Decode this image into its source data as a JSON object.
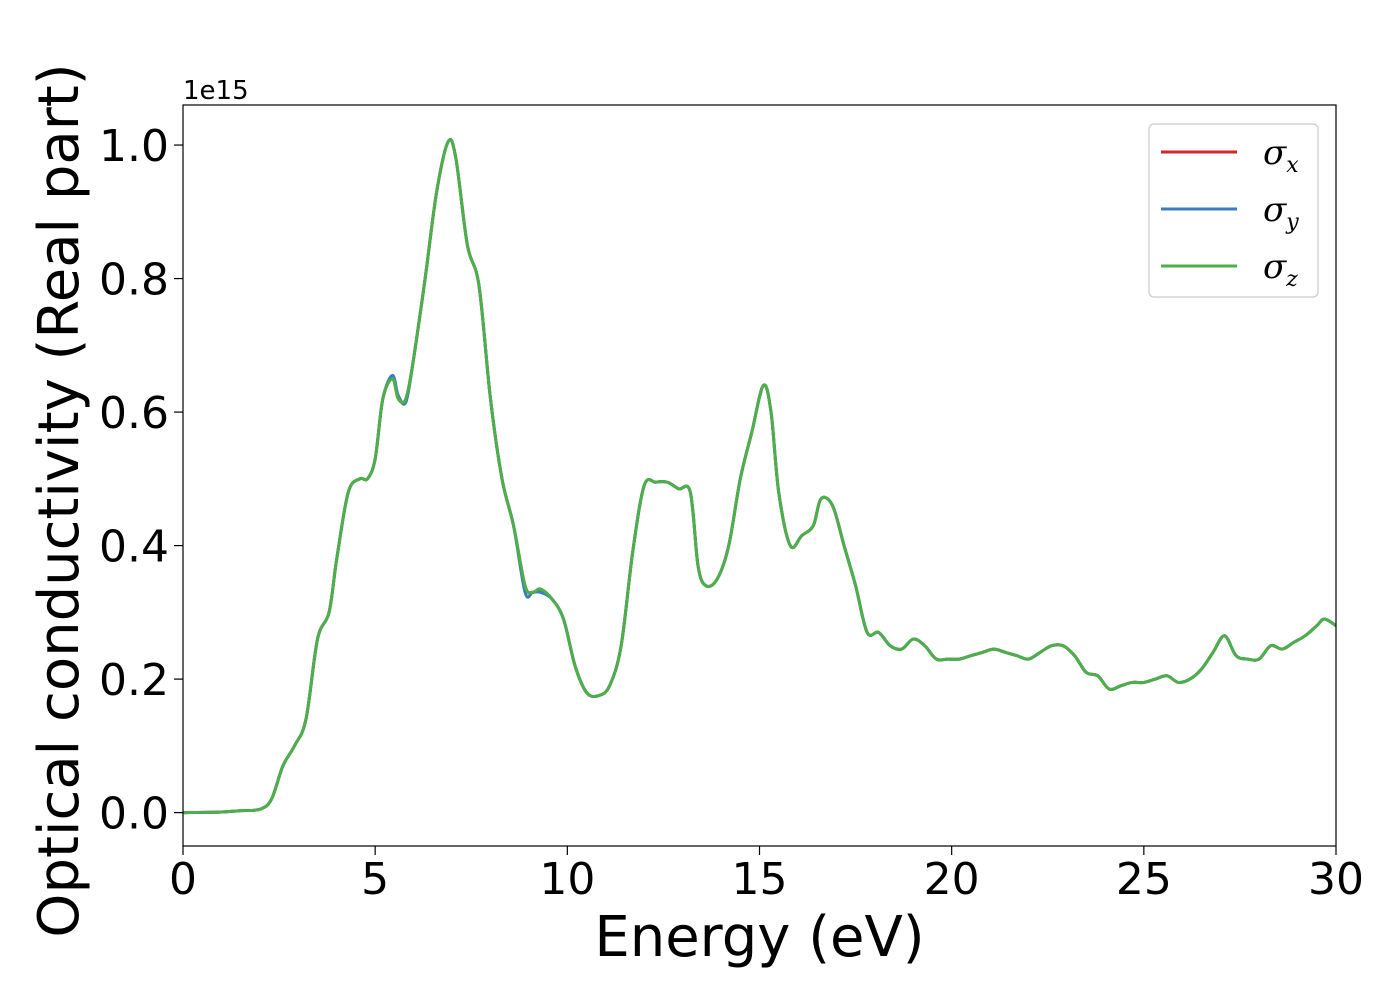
{
  "chart_data": {
    "type": "line",
    "xlabel": "Energy (eV)",
    "ylabel": "Optical conductivity (Real part)",
    "y_offset_label": "1e15",
    "xlim": [
      0,
      30
    ],
    "ylim": [
      -0.05,
      1.06
    ],
    "x_ticks": [
      0,
      5,
      10,
      15,
      20,
      25,
      30
    ],
    "x_tick_labels": [
      "0",
      "5",
      "10",
      "15",
      "20",
      "25",
      "30"
    ],
    "y_ticks": [
      0.0,
      0.2,
      0.4,
      0.6,
      0.8,
      1.0
    ],
    "y_tick_labels": [
      "0.0",
      "0.2",
      "0.4",
      "0.6",
      "0.8",
      "1.0"
    ],
    "grid": false,
    "legend_position": "top-right",
    "x": [
      0,
      1,
      1.5,
      2,
      2.3,
      2.6,
      2.9,
      3.2,
      3.5,
      3.8,
      4.0,
      4.3,
      4.6,
      4.8,
      5.0,
      5.2,
      5.45,
      5.6,
      5.8,
      6.0,
      6.3,
      6.6,
      6.9,
      7.1,
      7.4,
      7.7,
      8.0,
      8.3,
      8.6,
      8.9,
      9.1,
      9.3,
      9.6,
      9.9,
      10.2,
      10.5,
      10.8,
      11.1,
      11.4,
      11.7,
      12.0,
      12.3,
      12.6,
      12.9,
      13.2,
      13.4,
      13.6,
      13.9,
      14.2,
      14.5,
      14.8,
      15.1,
      15.3,
      15.5,
      15.8,
      16.1,
      16.4,
      16.6,
      16.9,
      17.2,
      17.5,
      17.8,
      18.1,
      18.4,
      18.7,
      19.0,
      19.3,
      19.6,
      19.9,
      20.2,
      20.5,
      20.8,
      21.1,
      21.4,
      21.7,
      22.0,
      22.3,
      22.6,
      22.9,
      23.2,
      23.5,
      23.8,
      24.1,
      24.4,
      24.7,
      25.0,
      25.3,
      25.6,
      25.9,
      26.2,
      26.5,
      26.8,
      27.1,
      27.4,
      27.7,
      28.0,
      28.3,
      28.6,
      28.9,
      29.2,
      29.5,
      29.7,
      30.0
    ],
    "series": [
      {
        "name": "σx",
        "label_base": "σ",
        "label_sub": "x",
        "color": "#d62728",
        "values": [
          0.0,
          0.001,
          0.003,
          0.005,
          0.02,
          0.07,
          0.1,
          0.14,
          0.26,
          0.3,
          0.38,
          0.48,
          0.5,
          0.5,
          0.53,
          0.62,
          0.65,
          0.62,
          0.62,
          0.68,
          0.8,
          0.93,
          1.005,
          0.98,
          0.85,
          0.79,
          0.62,
          0.5,
          0.43,
          0.34,
          0.33,
          0.335,
          0.32,
          0.29,
          0.22,
          0.18,
          0.175,
          0.19,
          0.25,
          0.39,
          0.49,
          0.495,
          0.495,
          0.485,
          0.48,
          0.37,
          0.34,
          0.35,
          0.4,
          0.5,
          0.57,
          0.64,
          0.6,
          0.48,
          0.4,
          0.415,
          0.43,
          0.47,
          0.46,
          0.4,
          0.34,
          0.27,
          0.27,
          0.25,
          0.245,
          0.26,
          0.25,
          0.23,
          0.23,
          0.23,
          0.235,
          0.24,
          0.245,
          0.24,
          0.235,
          0.23,
          0.24,
          0.25,
          0.25,
          0.235,
          0.21,
          0.205,
          0.185,
          0.19,
          0.195,
          0.195,
          0.2,
          0.205,
          0.195,
          0.2,
          0.215,
          0.24,
          0.265,
          0.235,
          0.23,
          0.23,
          0.25,
          0.245,
          0.255,
          0.265,
          0.28,
          0.29,
          0.28
        ]
      },
      {
        "name": "σy",
        "label_base": "σ",
        "label_sub": "y",
        "color": "#3a7ebf",
        "values": [
          0.0,
          0.001,
          0.003,
          0.005,
          0.02,
          0.07,
          0.1,
          0.14,
          0.26,
          0.3,
          0.38,
          0.48,
          0.5,
          0.5,
          0.53,
          0.62,
          0.655,
          0.625,
          0.615,
          0.68,
          0.8,
          0.93,
          1.005,
          0.98,
          0.85,
          0.79,
          0.62,
          0.5,
          0.43,
          0.33,
          0.33,
          0.33,
          0.32,
          0.29,
          0.22,
          0.18,
          0.175,
          0.19,
          0.25,
          0.39,
          0.49,
          0.495,
          0.495,
          0.485,
          0.48,
          0.37,
          0.34,
          0.35,
          0.4,
          0.5,
          0.57,
          0.64,
          0.6,
          0.48,
          0.4,
          0.415,
          0.43,
          0.47,
          0.46,
          0.4,
          0.34,
          0.27,
          0.27,
          0.25,
          0.245,
          0.26,
          0.25,
          0.23,
          0.23,
          0.23,
          0.235,
          0.24,
          0.245,
          0.24,
          0.235,
          0.23,
          0.24,
          0.25,
          0.25,
          0.235,
          0.21,
          0.205,
          0.185,
          0.19,
          0.195,
          0.195,
          0.2,
          0.205,
          0.195,
          0.2,
          0.215,
          0.24,
          0.265,
          0.235,
          0.23,
          0.23,
          0.25,
          0.245,
          0.255,
          0.265,
          0.28,
          0.29,
          0.28
        ]
      },
      {
        "name": "σz",
        "label_base": "σ",
        "label_sub": "z",
        "color": "#4daf4a",
        "values": [
          0.0,
          0.001,
          0.003,
          0.005,
          0.02,
          0.07,
          0.1,
          0.14,
          0.26,
          0.3,
          0.38,
          0.48,
          0.5,
          0.5,
          0.53,
          0.62,
          0.65,
          0.62,
          0.62,
          0.68,
          0.8,
          0.93,
          1.005,
          0.98,
          0.85,
          0.79,
          0.62,
          0.5,
          0.43,
          0.34,
          0.33,
          0.335,
          0.32,
          0.29,
          0.22,
          0.18,
          0.175,
          0.19,
          0.25,
          0.39,
          0.49,
          0.495,
          0.495,
          0.485,
          0.48,
          0.37,
          0.34,
          0.35,
          0.4,
          0.5,
          0.57,
          0.64,
          0.6,
          0.48,
          0.4,
          0.415,
          0.43,
          0.47,
          0.46,
          0.4,
          0.34,
          0.27,
          0.27,
          0.25,
          0.245,
          0.26,
          0.25,
          0.23,
          0.23,
          0.23,
          0.235,
          0.24,
          0.245,
          0.24,
          0.235,
          0.23,
          0.24,
          0.25,
          0.25,
          0.235,
          0.21,
          0.205,
          0.185,
          0.19,
          0.195,
          0.195,
          0.2,
          0.205,
          0.195,
          0.2,
          0.215,
          0.24,
          0.265,
          0.235,
          0.23,
          0.23,
          0.25,
          0.245,
          0.255,
          0.265,
          0.28,
          0.29,
          0.28
        ]
      }
    ]
  }
}
